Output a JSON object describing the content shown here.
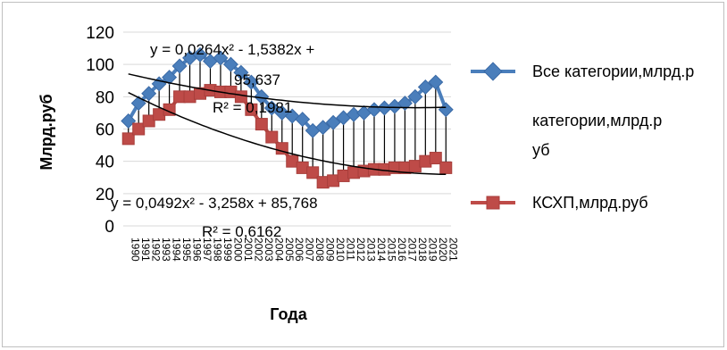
{
  "chart_data": {
    "type": "line",
    "title": "",
    "xlabel": "Года",
    "ylabel": "Млрд.руб",
    "ylim": [
      0,
      120
    ],
    "yticks": [
      "0",
      "20",
      "40",
      "60",
      "80",
      "100",
      "120"
    ],
    "grid": true,
    "legend_position": "right",
    "categories": [
      "1990",
      "1991",
      "1992",
      "1993",
      "1994",
      "1995",
      "1996",
      "1997",
      "1998",
      "1999",
      "2000",
      "2001",
      "2002",
      "2003",
      "2004",
      "2005",
      "2006",
      "2007",
      "2008",
      "2009",
      "2010",
      "2011",
      "2012",
      "2013",
      "2014",
      "2015",
      "2016",
      "2017",
      "2018",
      "2019",
      "2020",
      "2021"
    ],
    "series": [
      {
        "name": "Все категории,млрд.руб",
        "color": "#4a7ebb",
        "marker": "diamond",
        "values": [
          65,
          76,
          82,
          88,
          92,
          99,
          104,
          106,
          102,
          104,
          100,
          95,
          89,
          80,
          73,
          70,
          68,
          66,
          59,
          61,
          64,
          67,
          69,
          70,
          72,
          73,
          74,
          76,
          80,
          86,
          89,
          72
        ]
      },
      {
        "name": "КСХП,млрд.руб",
        "color": "#be4b48",
        "marker": "square",
        "values": [
          54,
          60,
          65,
          69,
          72,
          80,
          80,
          82,
          84,
          83,
          83,
          80,
          72,
          63,
          55,
          48,
          40,
          36,
          33,
          27,
          28,
          31,
          33,
          34,
          35,
          35,
          36,
          36,
          37,
          40,
          42,
          36
        ]
      }
    ],
    "trendlines": [
      {
        "series": "Все категории,млрд.руб",
        "equation_line1": "y = 0,0264x² - 1,5382x +",
        "equation_line2": "95,637",
        "r2": "R² = 0,1981",
        "coef": [
          0.0264,
          -1.5382,
          95.637
        ]
      },
      {
        "series": "КСХП,млрд.руб",
        "equation_line1": "y = 0,0492x² - 3,258x + 85,768",
        "r2": "R² = 0,6162",
        "coef": [
          0.0492,
          -3.258,
          85.768
        ]
      }
    ],
    "legend": [
      "Все категории,млрд.р",
      "уб",
      "КСХП,млрд.руб"
    ]
  }
}
